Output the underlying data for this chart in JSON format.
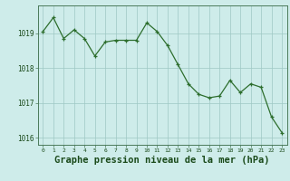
{
  "x": [
    0,
    1,
    2,
    3,
    4,
    5,
    6,
    7,
    8,
    9,
    10,
    11,
    12,
    13,
    14,
    15,
    16,
    17,
    18,
    19,
    20,
    21,
    22,
    23
  ],
  "y": [
    1019.05,
    1019.45,
    1018.85,
    1019.1,
    1018.85,
    1018.35,
    1018.75,
    1018.8,
    1018.8,
    1018.8,
    1019.3,
    1019.05,
    1018.65,
    1018.1,
    1017.55,
    1017.25,
    1017.15,
    1017.2,
    1017.65,
    1017.3,
    1017.55,
    1017.45,
    1016.6,
    1016.15
  ],
  "line_color": "#2d6e2d",
  "marker_color": "#2d6e2d",
  "bg_color": "#ceecea",
  "grid_color": "#9ec8c4",
  "border_color": "#4a7a5a",
  "title": "Graphe pression niveau de la mer (hPa)",
  "title_color": "#1a4a1a",
  "title_fontsize": 7.5,
  "ylim": [
    1015.8,
    1019.8
  ],
  "yticks": [
    1016,
    1017,
    1018,
    1019
  ],
  "xtick_labels": [
    "0",
    "1",
    "2",
    "3",
    "4",
    "5",
    "6",
    "7",
    "8",
    "9",
    "10",
    "11",
    "12",
    "13",
    "14",
    "15",
    "16",
    "17",
    "18",
    "19",
    "20",
    "21",
    "22",
    "23"
  ]
}
